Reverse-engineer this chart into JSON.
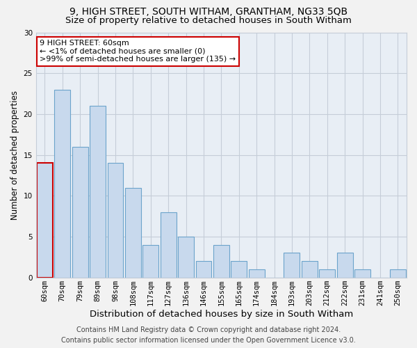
{
  "title": "9, HIGH STREET, SOUTH WITHAM, GRANTHAM, NG33 5QB",
  "subtitle": "Size of property relative to detached houses in South Witham",
  "xlabel": "Distribution of detached houses by size in South Witham",
  "ylabel": "Number of detached properties",
  "footer_line1": "Contains HM Land Registry data © Crown copyright and database right 2024.",
  "footer_line2": "Contains public sector information licensed under the Open Government Licence v3.0.",
  "bar_labels": [
    "60sqm",
    "70sqm",
    "79sqm",
    "89sqm",
    "98sqm",
    "108sqm",
    "117sqm",
    "127sqm",
    "136sqm",
    "146sqm",
    "155sqm",
    "165sqm",
    "174sqm",
    "184sqm",
    "193sqm",
    "203sqm",
    "212sqm",
    "222sqm",
    "231sqm",
    "241sqm",
    "250sqm"
  ],
  "bar_values": [
    14,
    23,
    16,
    21,
    14,
    11,
    4,
    8,
    5,
    2,
    4,
    2,
    1,
    0,
    3,
    2,
    1,
    3,
    1,
    0,
    1
  ],
  "bar_color": "#c8d9ed",
  "bar_edge_color": "#6ba3cb",
  "highlight_bar_index": 0,
  "highlight_bar_edge_color": "#cc0000",
  "annotation_box_edge_color": "#cc0000",
  "annotation_title": "9 HIGH STREET: 60sqm",
  "annotation_line1": "← <1% of detached houses are smaller (0)",
  "annotation_line2": ">99% of semi-detached houses are larger (135) →",
  "ylim": [
    0,
    30
  ],
  "yticks": [
    0,
    5,
    10,
    15,
    20,
    25,
    30
  ],
  "bg_color": "#f2f2f2",
  "plot_bg_color": "#e8eef5",
  "grid_color": "#c5cdd8",
  "title_fontsize": 10,
  "subtitle_fontsize": 9.5,
  "xlabel_fontsize": 9.5,
  "ylabel_fontsize": 8.5,
  "tick_fontsize": 7.5,
  "annotation_fontsize": 8,
  "footer_fontsize": 7
}
